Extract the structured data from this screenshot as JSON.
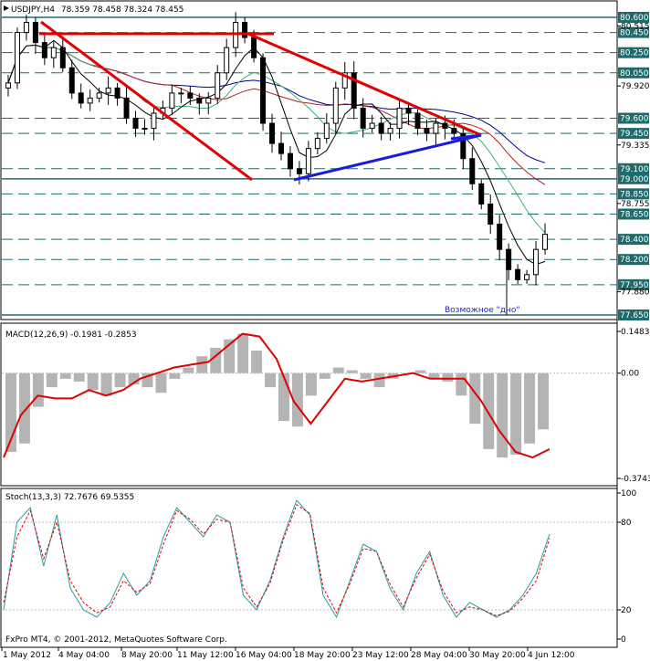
{
  "window": {
    "symbol_header": "USDJPY,H4",
    "ohlc": "78.359 78.458 78.324 78.455",
    "copyright": "FxPro MT4, © 2001-2012, MetaQuotes Software Corp."
  },
  "colors": {
    "background": "#ffffff",
    "candle": "#000000",
    "trend_red": "#e30000",
    "trend_blue": "#1a1adc",
    "level_line": "#1f6b6b",
    "level_label_bg": "#1f6b6b",
    "ma_blue": "#00008b",
    "ma_red": "#b22222",
    "ma_green": "#3cb371",
    "ma_black": "#000000",
    "macd_hist": "#b4b4b4",
    "macd_signal": "#e00000",
    "stoch_main": "#2a9d9d",
    "stoch_signal": "#e00000"
  },
  "price_panel": {
    "levels_boxed": [
      "80.600",
      "80.450",
      "80.250",
      "80.050",
      "79.600",
      "79.450",
      "79.100",
      "79.000",
      "78.850",
      "78.650",
      "78.400",
      "78.200",
      "77.950",
      "77.650"
    ],
    "levels_plain": [
      "80.515",
      "79.920",
      "79.335",
      "78.755",
      "77.880"
    ],
    "annotation": "Возможное \"дно\""
  },
  "macd_panel": {
    "header": "MACD(12,26,9) -0.1981 -0.2853",
    "scale": [
      "0.1483",
      "0.00",
      "-0.3743"
    ]
  },
  "stoch_panel": {
    "header": "Stoch(13,3,3) 72.7676 69.5355",
    "scale": [
      "100",
      "80",
      "20",
      "0"
    ]
  },
  "time_axis": [
    "1 May 2012",
    "4 May 04:00",
    "8 May 20:00",
    "11 May 12:00",
    "16 May 04:00",
    "18 May 20:00",
    "23 May 12:00",
    "28 May 04:00",
    "30 May 20:00",
    "4 Jun 12:00"
  ],
  "chart_data": [
    {
      "type": "line",
      "title": "USDJPY,H4",
      "description_values": "Approximate H4 close path (data units, JPY)",
      "x": [
        1,
        2,
        3,
        4,
        5,
        6,
        7,
        8,
        9,
        10,
        11,
        12,
        13,
        14,
        15,
        16,
        17,
        18,
        19,
        20,
        21,
        22,
        23,
        24,
        25,
        26,
        27,
        28,
        29,
        30,
        31,
        32,
        33,
        34,
        35,
        36,
        37,
        38,
        39,
        40,
        41,
        42,
        43,
        44,
        45,
        46,
        47,
        48,
        49,
        50,
        51,
        52,
        53,
        54,
        55,
        56,
        57,
        58,
        59,
        60
      ],
      "series": [
        {
          "values": [
            79.95,
            80.45,
            80.55,
            80.35,
            80.2,
            80.3,
            80.1,
            79.85,
            79.75,
            79.8,
            79.85,
            79.9,
            79.8,
            79.6,
            79.5,
            79.5,
            79.65,
            79.7,
            79.85,
            79.85,
            79.8,
            79.75,
            79.8,
            80.05,
            80.3,
            80.55,
            80.4,
            80.2,
            79.55,
            79.35,
            79.25,
            79.1,
            79.05,
            79.3,
            79.4,
            79.55,
            79.9,
            80.05,
            79.7,
            79.5,
            79.55,
            79.45,
            79.5,
            79.7,
            79.65,
            79.5,
            79.45,
            79.55,
            79.5,
            79.45,
            79.2,
            78.95,
            78.75,
            78.55,
            78.3,
            78.1,
            78.0,
            78.05,
            78.3,
            78.45
          ]
        }
      ],
      "ylim": [
        77.65,
        80.6
      ]
    },
    {
      "type": "bar",
      "title": "MACD(12,26,9)",
      "series": [
        {
          "name": "histogram",
          "values": [
            -0.28,
            -0.25,
            -0.12,
            -0.05,
            -0.02,
            -0.03,
            -0.06,
            -0.08,
            -0.05,
            -0.04,
            -0.05,
            -0.07,
            -0.02,
            0.02,
            0.06,
            0.09,
            0.12,
            0.14,
            0.08,
            -0.05,
            -0.17,
            -0.19,
            -0.08,
            -0.02,
            0.02,
            0.01,
            -0.02,
            -0.05,
            -0.02,
            0.0,
            0.01,
            -0.02,
            -0.03,
            -0.08,
            -0.18,
            -0.27,
            -0.3,
            -0.29,
            -0.25,
            -0.2
          ]
        },
        {
          "name": "signal",
          "values": [
            -0.3,
            -0.15,
            -0.08,
            -0.09,
            -0.09,
            -0.06,
            -0.08,
            -0.06,
            -0.02,
            0.0,
            0.02,
            0.03,
            0.04,
            0.09,
            0.14,
            0.13,
            0.05,
            -0.1,
            -0.18,
            -0.1,
            -0.02,
            -0.03,
            -0.02,
            -0.01,
            0.0,
            -0.02,
            -0.02,
            -0.02,
            -0.1,
            -0.2,
            -0.28,
            -0.3,
            -0.27
          ]
        }
      ],
      "ylim": [
        -0.3743,
        0.1483
      ]
    },
    {
      "type": "line",
      "title": "Stoch(13,3,3)",
      "series": [
        {
          "name": "main",
          "values": [
            20,
            80,
            90,
            50,
            85,
            35,
            20,
            15,
            25,
            45,
            30,
            40,
            70,
            90,
            80,
            70,
            85,
            80,
            30,
            20,
            40,
            70,
            95,
            85,
            30,
            15,
            40,
            65,
            60,
            35,
            20,
            45,
            60,
            30,
            15,
            25,
            20,
            15,
            20,
            30,
            45,
            72
          ]
        },
        {
          "name": "signal",
          "values": [
            25,
            70,
            88,
            55,
            80,
            40,
            25,
            18,
            22,
            40,
            32,
            38,
            65,
            88,
            82,
            72,
            82,
            80,
            35,
            22,
            38,
            68,
            92,
            86,
            35,
            18,
            38,
            62,
            60,
            38,
            22,
            42,
            58,
            33,
            18,
            22,
            20,
            16,
            19,
            28,
            40,
            69
          ]
        }
      ],
      "ylim": [
        0,
        100
      ]
    }
  ]
}
